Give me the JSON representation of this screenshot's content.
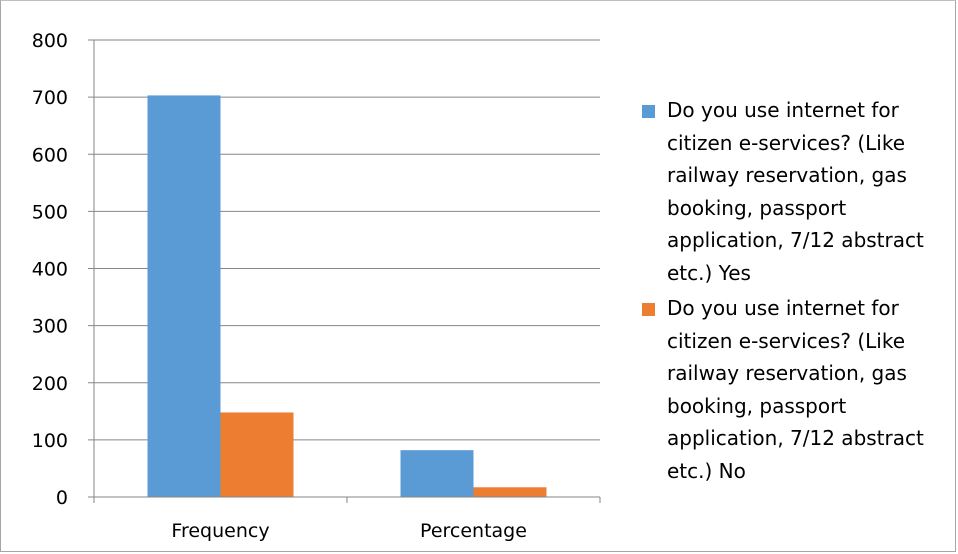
{
  "chart_data": {
    "type": "bar",
    "title": "",
    "xlabel": "",
    "ylabel": "",
    "categories": [
      "Frequency",
      "Percentage"
    ],
    "series": [
      {
        "name": "Do you use internet for citizen e-services? (Like railway reservation, gas booking, passport application, 7/12 abstract etc.) Yes",
        "color": "#5b9bd5",
        "values": [
          703,
          82
        ]
      },
      {
        "name": "Do you use internet for citizen e-services? (Like railway reservation, gas booking, passport application, 7/12 abstract etc.) No",
        "color": "#ed7d31",
        "values": [
          148,
          17
        ]
      }
    ],
    "ylim": [
      0,
      800
    ],
    "yticks": [
      0,
      100,
      200,
      300,
      400,
      500,
      600,
      700,
      800
    ],
    "grid": true,
    "legend_position": "right"
  }
}
